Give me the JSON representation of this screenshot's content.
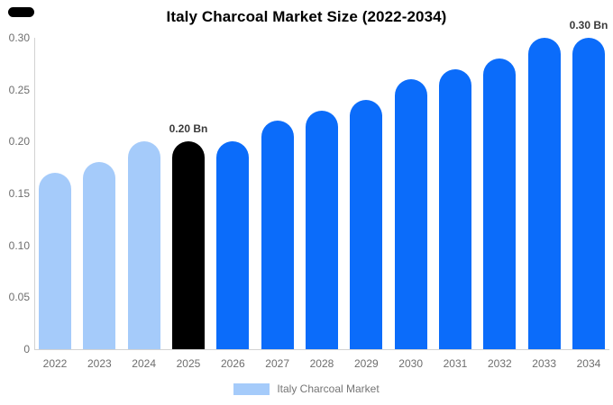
{
  "page": {
    "background": "#ffffff",
    "brand_mark_color": "#000000"
  },
  "legend": {
    "label": "Italy Charcoal Market"
  },
  "chart_data": {
    "type": "bar",
    "title": "Italy Charcoal Market Size (2022-2034)",
    "series_name": "Italy Charcoal Market",
    "unit": "Bn",
    "categories": [
      "2022",
      "2023",
      "2024",
      "2025",
      "2026",
      "2027",
      "2028",
      "2029",
      "2030",
      "2031",
      "2032",
      "2033",
      "2034"
    ],
    "values": [
      0.17,
      0.18,
      0.2,
      0.2,
      0.2,
      0.22,
      0.23,
      0.24,
      0.26,
      0.27,
      0.28,
      0.3,
      0.3
    ],
    "xlabel": "",
    "ylabel": "",
    "ylim": [
      0,
      0.3
    ],
    "yticks": [
      0,
      0.05,
      0.1,
      0.15,
      0.2,
      0.25,
      0.3
    ],
    "ytick_labels": [
      "0",
      "0.05",
      "0.10",
      "0.15",
      "0.20",
      "0.25",
      "0.30"
    ],
    "grid": "off",
    "legend_position": "bottom",
    "colors": {
      "historical": "#A5CBFA",
      "base_year": "#000000",
      "forecast": "#0B6CFA",
      "axis_line": "#d2d2d2",
      "tick_text": "#6e6e6e",
      "annotation_text": "#3a3a3a"
    },
    "bar_colors": [
      "#A5CBFA",
      "#A5CBFA",
      "#A5CBFA",
      "#000000",
      "#0B6CFA",
      "#0B6CFA",
      "#0B6CFA",
      "#0B6CFA",
      "#0B6CFA",
      "#0B6CFA",
      "#0B6CFA",
      "#0B6CFA",
      "#0B6CFA"
    ],
    "annotations": [
      {
        "category": "2025",
        "text": "0.20 Bn"
      },
      {
        "category": "2034",
        "text": "0.30 Bn"
      }
    ],
    "legend": [
      {
        "label": "Italy Charcoal Market",
        "color": "#A5CBFA"
      }
    ]
  }
}
